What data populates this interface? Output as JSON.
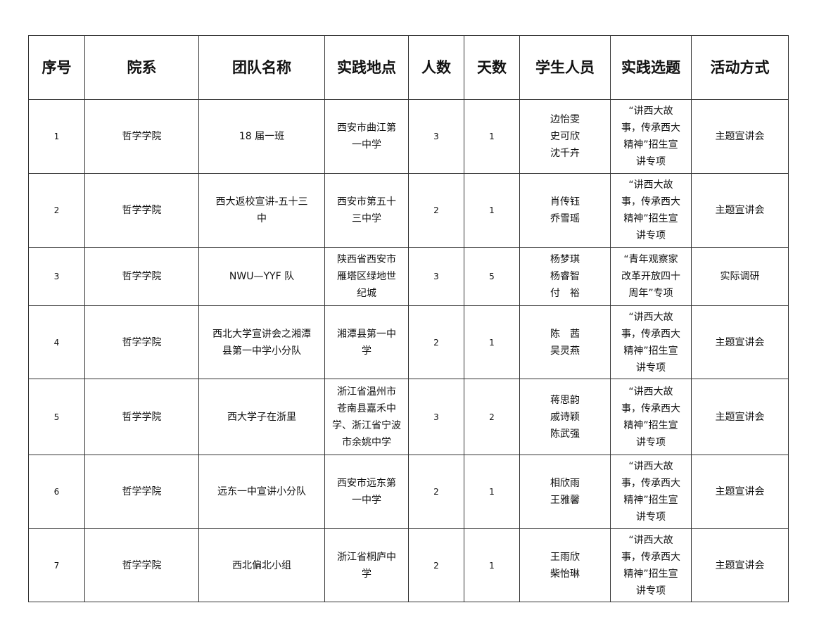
{
  "headers": [
    "序号",
    "院系",
    "团队名称",
    "实践地点",
    "人数",
    "天数",
    "学生人员",
    "实践选题",
    "活动方式"
  ],
  "rows": [
    {
      "no": "1",
      "dept": "哲学学院",
      "team": [
        "18 届一班"
      ],
      "place": [
        "西安市曲江第",
        "一中学"
      ],
      "people": "3",
      "days": "1",
      "students": [
        "边怡雯",
        "史可欣",
        "沈千卉"
      ],
      "topic": [
        "“讲西大故",
        "事，传承西大",
        "精神”招生宣",
        "讲专项"
      ],
      "mode": "主题宣讲会"
    },
    {
      "no": "2",
      "dept": "哲学学院",
      "team": [
        "西大返校宣讲-五十三",
        "中"
      ],
      "place": [
        "西安市第五十",
        "三中学"
      ],
      "people": "2",
      "days": "1",
      "students": [
        "肖传钰",
        "乔雪瑶"
      ],
      "topic": [
        "“讲西大故",
        "事，传承西大",
        "精神”招生宣",
        "讲专项"
      ],
      "mode": "主题宣讲会"
    },
    {
      "no": "3",
      "dept": "哲学学院",
      "team": [
        "NWU—YYF 队"
      ],
      "place": [
        "陕西省西安市",
        "雁塔区绿地世",
        "纪城"
      ],
      "people": "3",
      "days": "5",
      "students": [
        "杨梦琪",
        "杨睿智",
        "付　裕"
      ],
      "topic": [
        "“青年观察家",
        "改革开放四十",
        "周年”专项"
      ],
      "mode": "实际调研"
    },
    {
      "no": "4",
      "dept": "哲学学院",
      "team": [
        "西北大学宣讲会之湘潭",
        "县第一中学小分队"
      ],
      "place": [
        "湘潭县第一中",
        "学"
      ],
      "people": "2",
      "days": "1",
      "students": [
        "陈　茜",
        "吴灵燕"
      ],
      "topic": [
        "“讲西大故",
        "事，传承西大",
        "精神”招生宣",
        "讲专项"
      ],
      "mode": "主题宣讲会"
    },
    {
      "no": "5",
      "dept": "哲学学院",
      "team": [
        "西大学子在浙里"
      ],
      "place": [
        "浙江省温州市",
        "苍南县嘉禾中",
        "学、浙江省宁波",
        "市余姚中学"
      ],
      "people": "3",
      "days": "2",
      "students": [
        "蒋思韵",
        "戚诗颖",
        "陈武强"
      ],
      "topic": [
        "“讲西大故",
        "事，传承西大",
        "精神”招生宣",
        "讲专项"
      ],
      "mode": "主题宣讲会"
    },
    {
      "no": "6",
      "dept": "哲学学院",
      "team": [
        "远东一中宣讲小分队"
      ],
      "place": [
        "西安市远东第",
        "一中学"
      ],
      "people": "2",
      "days": "1",
      "students": [
        "相欣雨",
        "王雅馨"
      ],
      "topic": [
        "“讲西大故",
        "事，传承西大",
        "精神”招生宣",
        "讲专项"
      ],
      "mode": "主题宣讲会"
    },
    {
      "no": "7",
      "dept": "哲学学院",
      "team": [
        "西北偏北小组"
      ],
      "place": [
        "浙江省桐庐中",
        "学"
      ],
      "people": "2",
      "days": "1",
      "students": [
        "王雨欣",
        "柴怡琳"
      ],
      "topic": [
        "“讲西大故",
        "事，传承西大",
        "精神”招生宣",
        "讲专项"
      ],
      "mode": "主题宣讲会"
    }
  ]
}
